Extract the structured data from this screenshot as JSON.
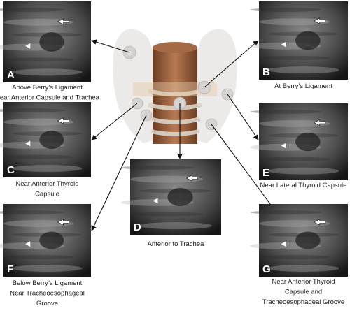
{
  "panels": [
    {
      "letter": "A",
      "caption": [
        "Above Berry’s Ligament",
        "Near Anterior Capsule and Trachea"
      ]
    },
    {
      "letter": "B",
      "caption": [
        "At Berry’s Ligament"
      ]
    },
    {
      "letter": "C",
      "caption": [
        "Near Anterior Thyroid",
        "Capsule"
      ]
    },
    {
      "letter": "D",
      "caption": [
        "Anterior to Trachea"
      ]
    },
    {
      "letter": "E",
      "caption": [
        "Near Lateral Thyroid Capsule"
      ]
    },
    {
      "letter": "F",
      "caption": [
        "Below Berry’s Ligament",
        "Near Tracheoesophageal",
        "Groove"
      ]
    },
    {
      "letter": "G",
      "caption": [
        "Near Anterior Thyroid",
        "Capsule and",
        "Tracheoesophageal Groove"
      ]
    }
  ]
}
